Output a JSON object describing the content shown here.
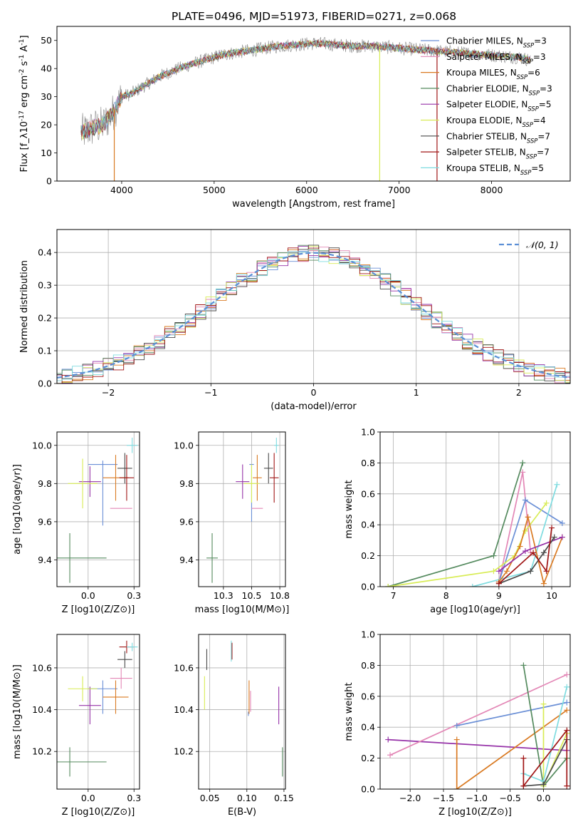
{
  "title": "PLATE=0496, MJD=51973, FIBERID=0271, z=0.068",
  "colors": {
    "Chabrier MILES": "#6a8fd6",
    "Salpeter MILES": "#e387b6",
    "Kroupa MILES": "#d97a22",
    "Chabrier ELODIE": "#548a5e",
    "Salpeter ELODIE": "#9632a8",
    "Kroupa ELODIE": "#d8ec55",
    "Chabrier STELIB": "#4a4a4a",
    "Salpeter STELIB": "#a01515",
    "Kroupa STELIB": "#7fdce0",
    "data": "#888888",
    "normal": "#5b8fd6"
  },
  "chart_data": [
    {
      "id": "spectrum",
      "type": "line",
      "xlabel": "wavelength [Angstrom, rest frame]",
      "ylabel": "Flux [f_λ10^{-17} erg cm^{-2} s^{-1} A^{-1}]",
      "xlim": [
        3300,
        8850
      ],
      "ylim": [
        0,
        55
      ],
      "xticks": [
        4000,
        5000,
        6000,
        7000,
        8000
      ],
      "yticks": [
        0,
        10,
        20,
        30,
        40,
        50
      ],
      "legend_position": "top-right",
      "legend": [
        {
          "model": "Chabrier MILES",
          "nssp": "3"
        },
        {
          "model": "Salpeter MILES",
          "nssp": "3"
        },
        {
          "model": "Kroupa MILES",
          "nssp": "6"
        },
        {
          "model": "Chabrier ELODIE",
          "nssp": "3"
        },
        {
          "model": "Salpeter ELODIE",
          "nssp": "5"
        },
        {
          "model": "Kroupa ELODIE",
          "nssp": "4"
        },
        {
          "model": "Chabrier STELIB",
          "nssp": "7"
        },
        {
          "model": "Salpeter STELIB",
          "nssp": "7"
        },
        {
          "model": "Kroupa STELIB",
          "nssp": "5"
        }
      ],
      "continuum": [
        [
          3560,
          17
        ],
        [
          3700,
          19
        ],
        [
          3800,
          20
        ],
        [
          3900,
          24
        ],
        [
          3950,
          27
        ],
        [
          4000,
          30
        ],
        [
          4100,
          31
        ],
        [
          4200,
          33
        ],
        [
          4300,
          35
        ],
        [
          4400,
          37
        ],
        [
          4500,
          38.5
        ],
        [
          4700,
          41
        ],
        [
          4900,
          43
        ],
        [
          5100,
          45
        ],
        [
          5300,
          46
        ],
        [
          5500,
          47
        ],
        [
          5700,
          48
        ],
        [
          5900,
          48.5
        ],
        [
          6100,
          49
        ],
        [
          6300,
          48.5
        ],
        [
          6500,
          48
        ],
        [
          6700,
          48
        ],
        [
          6900,
          47.5
        ],
        [
          7100,
          47
        ],
        [
          7300,
          46.5
        ],
        [
          7500,
          46
        ],
        [
          7700,
          45.5
        ],
        [
          7900,
          45
        ],
        [
          8100,
          44.5
        ],
        [
          8300,
          44
        ],
        [
          8420,
          43
        ]
      ],
      "model_range": [
        3560,
        8420
      ],
      "model_drops": [
        {
          "model": "Kroupa MILES",
          "x": 3920
        },
        {
          "model": "Kroupa ELODIE",
          "x": 6790
        },
        {
          "model": "Salpeter STELIB",
          "x": 7410
        }
      ]
    },
    {
      "id": "residuals",
      "type": "histogram",
      "xlabel": "(data-model)/error",
      "ylabel": "Normed distribution",
      "xlim": [
        -2.5,
        2.5
      ],
      "ylim": [
        0,
        0.47
      ],
      "xticks": [
        -2,
        -1,
        0,
        1,
        2
      ],
      "yticks": [
        0.0,
        0.1,
        0.2,
        0.3,
        0.4
      ],
      "grid": true,
      "legend_position": "top-right",
      "reference_curve": {
        "name": "𝒩(0, 1)",
        "mean": 0,
        "sigma": 1
      },
      "bin_width": 0.1
    },
    {
      "id": "age_vs_Z",
      "type": "scatter",
      "xlabel": "Z [log10(Z/Z⊙)]",
      "ylabel": "age  [log10(age/yr)]",
      "xlim": [
        -0.17,
        0.28
      ],
      "ylim": [
        9.26,
        10.07
      ],
      "xticks": [
        0.0,
        0.25
      ],
      "yticks": [
        9.4,
        9.6,
        9.8,
        10.0
      ],
      "grid": true,
      "points": [
        {
          "model": "Chabrier MILES",
          "x": 0.08,
          "y": 9.75,
          "ex": 0.08,
          "ey": 0.17,
          "bar_y": 9.9
        },
        {
          "model": "Salpeter MILES",
          "x": 0.18,
          "y": 9.67,
          "ex": 0.06,
          "ey": 0.0
        },
        {
          "model": "Kroupa MILES",
          "x": 0.15,
          "y": 9.83,
          "ex": 0.07,
          "ey": 0.12
        },
        {
          "model": "Chabrier ELODIE",
          "x": -0.1,
          "y": 9.41,
          "ex": 0.2,
          "ey": 0.13
        },
        {
          "model": "Salpeter ELODIE",
          "x": 0.01,
          "y": 9.81,
          "ex": 0.06,
          "ey": 0.08
        },
        {
          "model": "Kroupa ELODIE",
          "x": -0.03,
          "y": 9.8,
          "ex": 0.08,
          "ey": 0.13
        },
        {
          "model": "Chabrier STELIB",
          "x": 0.2,
          "y": 9.88,
          "ex": 0.04,
          "ey": 0.08
        },
        {
          "model": "Salpeter STELIB",
          "x": 0.21,
          "y": 9.83,
          "ex": 0.04,
          "ey": 0.12
        },
        {
          "model": "Kroupa STELIB",
          "x": 0.24,
          "y": 10.0,
          "ex": 0.03,
          "ey": 0.04
        }
      ]
    },
    {
      "id": "age_vs_mass",
      "type": "scatter",
      "xlabel": "mass [log10(M/M⊙)]",
      "ylabel": "",
      "xlim": [
        10.03,
        10.8
      ],
      "ylim": [
        9.26,
        10.07
      ],
      "xticks": [
        10.25,
        10.5,
        10.75
      ],
      "yticks": [
        9.4,
        9.6,
        9.8,
        10.0
      ],
      "grid": true,
      "points": [
        {
          "model": "Chabrier MILES",
          "x": 10.5,
          "y": 9.75,
          "ex": 0.02,
          "ey": 0.15,
          "bar_y": 9.9
        },
        {
          "model": "Salpeter MILES",
          "x": 10.55,
          "y": 9.67,
          "ex": 0.05,
          "ey": 0.0
        },
        {
          "model": "Kroupa MILES",
          "x": 10.55,
          "y": 9.83,
          "ex": 0.04,
          "ey": 0.12
        },
        {
          "model": "Chabrier ELODIE",
          "x": 10.15,
          "y": 9.41,
          "ex": 0.05,
          "ey": 0.13
        },
        {
          "model": "Salpeter ELODIE",
          "x": 10.42,
          "y": 9.81,
          "ex": 0.06,
          "ey": 0.09
        },
        {
          "model": "Kroupa ELODIE",
          "x": 10.5,
          "y": 9.8,
          "ex": 0.07,
          "ey": 0.1
        },
        {
          "model": "Chabrier STELIB",
          "x": 10.65,
          "y": 9.88,
          "ex": 0.04,
          "ey": 0.08
        },
        {
          "model": "Salpeter STELIB",
          "x": 10.7,
          "y": 9.83,
          "ex": 0.04,
          "ey": 0.13
        },
        {
          "model": "Kroupa STELIB",
          "x": 10.72,
          "y": 10.0,
          "ex": 0.02,
          "ey": 0.04
        }
      ]
    },
    {
      "id": "weight_vs_age",
      "type": "line",
      "xlabel": "age  [log10(age/yr)]",
      "ylabel": "mass weight",
      "xlim": [
        6.75,
        10.35
      ],
      "ylim": [
        0,
        1.0
      ],
      "xticks": [
        7,
        8,
        9,
        10
      ],
      "yticks": [
        0.0,
        0.2,
        0.4,
        0.6,
        0.8,
        1.0
      ],
      "grid": true,
      "series": [
        {
          "model": "Chabrier ELODIE",
          "points": [
            [
              6.9,
              0.0
            ],
            [
              8.9,
              0.2
            ],
            [
              9.45,
              0.8
            ]
          ]
        },
        {
          "model": "Salpeter MILES",
          "points": [
            [
              9.0,
              0.03
            ],
            [
              9.45,
              0.74
            ],
            [
              9.6,
              0.22
            ]
          ]
        },
        {
          "model": "Chabrier MILES",
          "points": [
            [
              9.0,
              0.03
            ],
            [
              9.5,
              0.56
            ],
            [
              10.2,
              0.41
            ]
          ]
        },
        {
          "model": "Kroupa ELODIE",
          "points": [
            [
              6.9,
              0.0
            ],
            [
              8.9,
              0.1
            ],
            [
              9.3,
              0.2
            ],
            [
              9.5,
              0.36
            ],
            [
              9.9,
              0.54
            ]
          ]
        },
        {
          "model": "Kroupa STELIB",
          "points": [
            [
              8.5,
              0.0
            ],
            [
              9.6,
              0.1
            ],
            [
              10.1,
              0.66
            ]
          ]
        },
        {
          "model": "Kroupa MILES",
          "points": [
            [
              9.0,
              0.03
            ],
            [
              9.15,
              0.1
            ],
            [
              9.4,
              0.26
            ],
            [
              9.55,
              0.45
            ],
            [
              9.85,
              0.02
            ],
            [
              10.2,
              0.32
            ]
          ]
        },
        {
          "model": "Salpeter ELODIE",
          "points": [
            [
              9.0,
              0.1
            ],
            [
              9.5,
              0.23
            ],
            [
              10.2,
              0.32
            ]
          ]
        },
        {
          "model": "Chabrier STELIB",
          "points": [
            [
              9.0,
              0.02
            ],
            [
              9.6,
              0.1
            ],
            [
              9.85,
              0.22
            ],
            [
              10.05,
              0.32
            ]
          ]
        },
        {
          "model": "Salpeter STELIB",
          "points": [
            [
              9.0,
              0.02
            ],
            [
              9.65,
              0.22
            ],
            [
              9.9,
              0.1
            ],
            [
              10.0,
              0.38
            ]
          ]
        }
      ]
    },
    {
      "id": "mass_vs_Z",
      "type": "scatter",
      "xlabel": "Z [log10(Z/Z⊙)]",
      "ylabel": "mass [log10(M/M⊙)]",
      "xlim": [
        -0.17,
        0.28
      ],
      "ylim": [
        10.02,
        10.76
      ],
      "xticks": [
        0.0,
        0.25
      ],
      "yticks": [
        10.2,
        10.4,
        10.6
      ],
      "grid": true,
      "points": [
        {
          "model": "Chabrier MILES",
          "x": 0.08,
          "y": 10.46,
          "ex": 0.08,
          "ey": 0.08,
          "bar_y": 10.5
        },
        {
          "model": "Salpeter MILES",
          "x": 0.18,
          "y": 10.55,
          "ex": 0.06,
          "ey": 0.05
        },
        {
          "model": "Kroupa MILES",
          "x": 0.15,
          "y": 10.46,
          "ex": 0.07,
          "ey": 0.08
        },
        {
          "model": "Chabrier ELODIE",
          "x": -0.1,
          "y": 10.15,
          "ex": 0.2,
          "ey": 0.07
        },
        {
          "model": "Salpeter ELODIE",
          "x": 0.01,
          "y": 10.42,
          "ex": 0.06,
          "ey": 0.09
        },
        {
          "model": "Kroupa ELODIE",
          "x": -0.03,
          "y": 10.5,
          "ex": 0.08,
          "ey": 0.06
        },
        {
          "model": "Chabrier STELIB",
          "x": 0.2,
          "y": 10.64,
          "ex": 0.04,
          "ey": 0.04
        },
        {
          "model": "Salpeter STELIB",
          "x": 0.21,
          "y": 10.7,
          "ex": 0.04,
          "ey": 0.03
        },
        {
          "model": "Kroupa STELIB",
          "x": 0.24,
          "y": 10.7,
          "ex": 0.03,
          "ey": 0.02
        }
      ]
    },
    {
      "id": "mass_vs_ebv",
      "type": "scatter",
      "xlabel": "E(B-V)",
      "ylabel": "",
      "xlim": [
        0.035,
        0.152
      ],
      "ylim": [
        10.02,
        10.76
      ],
      "xticks": [
        0.05,
        0.1,
        0.15
      ],
      "yticks": [
        10.2,
        10.4,
        10.6
      ],
      "grid": true,
      "points": [
        {
          "model": "Chabrier MILES",
          "x": 0.102,
          "y": 10.38,
          "ex": 0,
          "ey": 0.01
        },
        {
          "model": "Salpeter MILES",
          "x": 0.105,
          "y": 10.44,
          "ex": 0,
          "ey": 0.05
        },
        {
          "model": "Kroupa MILES",
          "x": 0.103,
          "y": 10.46,
          "ex": 0,
          "ey": 0.08
        },
        {
          "model": "Chabrier ELODIE",
          "x": 0.148,
          "y": 10.15,
          "ex": 0,
          "ey": 0.07
        },
        {
          "model": "Salpeter ELODIE",
          "x": 0.143,
          "y": 10.42,
          "ex": 0,
          "ey": 0.09
        },
        {
          "model": "Kroupa ELODIE",
          "x": 0.043,
          "y": 10.48,
          "ex": 0,
          "ey": 0.08
        },
        {
          "model": "Chabrier STELIB",
          "x": 0.046,
          "y": 10.64,
          "ex": 0,
          "ey": 0.05
        },
        {
          "model": "Salpeter STELIB",
          "x": 0.08,
          "y": 10.68,
          "ex": 0,
          "ey": 0.04
        },
        {
          "model": "Kroupa STELIB",
          "x": 0.079,
          "y": 10.68,
          "ex": 0,
          "ey": 0.05
        }
      ]
    },
    {
      "id": "weight_vs_Z",
      "type": "line",
      "xlabel": "Z [log10(Z/Z⊙)]",
      "ylabel": "mass weight",
      "xlim": [
        -2.45,
        0.4
      ],
      "ylim": [
        0,
        1.0
      ],
      "xticks": [
        -2.0,
        -1.5,
        -1.0,
        -0.5,
        0.0
      ],
      "yticks": [
        0.0,
        0.2,
        0.4,
        0.6,
        0.8,
        1.0
      ],
      "grid": true,
      "series": [
        {
          "model": "Salpeter ELODIE",
          "points": [
            [
              -2.33,
              0.32
            ],
            [
              0.35,
              0.25
            ]
          ]
        },
        {
          "model": "Salpeter MILES",
          "points": [
            [
              -2.3,
              0.22
            ],
            [
              0.35,
              0.74
            ]
          ]
        },
        {
          "model": "Chabrier MILES",
          "points": [
            [
              -1.3,
              0.41
            ],
            [
              0.35,
              0.56
            ]
          ]
        },
        {
          "model": "Kroupa MILES",
          "points": [
            [
              -1.3,
              0.32
            ],
            [
              -1.3,
              0.0
            ],
            [
              0.35,
              0.51
            ]
          ]
        },
        {
          "model": "Chabrier ELODIE",
          "points": [
            [
              -0.3,
              0.8
            ],
            [
              0.0,
              0.02
            ],
            [
              0.35,
              0.2
            ]
          ]
        },
        {
          "model": "Kroupa ELODIE",
          "points": [
            [
              0.0,
              0.55
            ],
            [
              0.0,
              0.02
            ],
            [
              0.35,
              0.36
            ]
          ]
        },
        {
          "model": "Kroupa STELIB",
          "points": [
            [
              -0.3,
              0.1
            ],
            [
              0.0,
              0.05
            ],
            [
              0.35,
              0.66
            ]
          ]
        },
        {
          "model": "Chabrier STELIB",
          "points": [
            [
              -0.3,
              0.02
            ],
            [
              0.0,
              0.03
            ],
            [
              0.35,
              0.32
            ]
          ]
        },
        {
          "model": "Salpeter STELIB",
          "points": [
            [
              -0.3,
              0.2
            ],
            [
              -0.3,
              0.02
            ],
            [
              0.35,
              0.38
            ],
            [
              0.35,
              0.02
            ]
          ]
        }
      ]
    }
  ]
}
